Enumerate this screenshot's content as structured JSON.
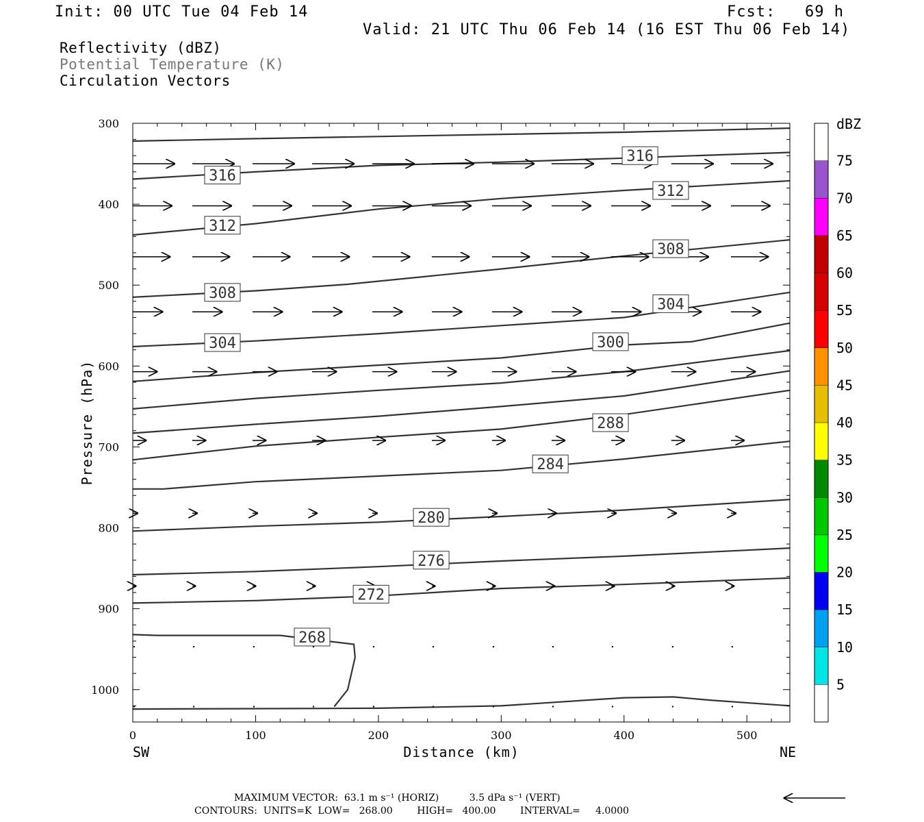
{
  "header": {
    "init": "Init: 00 UTC Tue 04 Feb 14",
    "fcst": "Fcst:   69 h",
    "valid": "Valid: 21 UTC Thu 06 Feb 14 (16 EST Thu 06 Feb 14)"
  },
  "fields": {
    "reflectivity": "Reflectivity (dBZ)",
    "theta": "Potential Temperature (K)",
    "vectors": "Circulation Vectors"
  },
  "chart_data": {
    "type": "cross-section",
    "xlabel": "Distance (km)",
    "ylabel": "Pressure (hPa)",
    "xlim": [
      0,
      535
    ],
    "ylim": [
      1040,
      300
    ],
    "x_ticks": [
      0,
      100,
      200,
      300,
      400,
      500
    ],
    "y_ticks": [
      300,
      400,
      500,
      600,
      700,
      800,
      900,
      1000
    ],
    "left_label": "SW",
    "right_label": "NE",
    "contours": [
      {
        "level": 320,
        "points": [
          [
            0,
            322
          ],
          [
            100,
            319
          ],
          [
            250,
            315
          ],
          [
            400,
            311
          ],
          [
            535,
            306
          ]
        ]
      },
      {
        "level": 316,
        "label": "316",
        "label_at": [
          73,
          364
        ],
        "points": [
          [
            0,
            369
          ],
          [
            100,
            360
          ],
          [
            200,
            352
          ],
          [
            300,
            348
          ],
          [
            400,
            343
          ],
          [
            535,
            336
          ]
        ]
      },
      {
        "level": 316,
        "label": "316",
        "label_at": [
          413,
          340
        ],
        "points": []
      },
      {
        "level": 312,
        "label": "312",
        "label_at": [
          73,
          426
        ],
        "points": [
          [
            0,
            438
          ],
          [
            100,
            424
          ],
          [
            200,
            406
          ],
          [
            300,
            393
          ],
          [
            400,
            383
          ],
          [
            535,
            371
          ]
        ]
      },
      {
        "level": 312,
        "label": "312",
        "label_at": [
          438,
          383
        ],
        "points": []
      },
      {
        "level": 308,
        "label": "308",
        "label_at": [
          73,
          509
        ],
        "points": [
          [
            0,
            515
          ],
          [
            100,
            507
          ],
          [
            175,
            499
          ],
          [
            300,
            480
          ],
          [
            400,
            464
          ],
          [
            535,
            444
          ]
        ]
      },
      {
        "level": 308,
        "label": "308",
        "label_at": [
          438,
          455
        ],
        "points": []
      },
      {
        "level": 304,
        "label": "304",
        "label_at": [
          73,
          571
        ],
        "points": [
          [
            0,
            576
          ],
          [
            100,
            569
          ],
          [
            200,
            560
          ],
          [
            300,
            550
          ],
          [
            400,
            540
          ],
          [
            535,
            509
          ]
        ]
      },
      {
        "level": 304,
        "label": "304",
        "label_at": [
          438,
          523
        ],
        "points": []
      },
      {
        "level": 300,
        "label": "300",
        "label_at": [
          389,
          570
        ],
        "points": [
          [
            0,
            619
          ],
          [
            100,
            608
          ],
          [
            200,
            599
          ],
          [
            300,
            590
          ],
          [
            400,
            574
          ],
          [
            455,
            570
          ],
          [
            535,
            547
          ]
        ]
      },
      {
        "level": 296,
        "points": [
          [
            0,
            653
          ],
          [
            100,
            640
          ],
          [
            200,
            630
          ],
          [
            300,
            621
          ],
          [
            400,
            607
          ],
          [
            535,
            581
          ]
        ]
      },
      {
        "level": 292,
        "points": [
          [
            0,
            683
          ],
          [
            100,
            672
          ],
          [
            200,
            662
          ],
          [
            300,
            650
          ],
          [
            400,
            637
          ],
          [
            535,
            606
          ]
        ]
      },
      {
        "level": 288,
        "label": "288",
        "label_at": [
          389,
          670
        ],
        "points": [
          [
            0,
            716
          ],
          [
            100,
            699
          ],
          [
            200,
            688
          ],
          [
            300,
            678
          ],
          [
            400,
            660
          ],
          [
            535,
            630
          ]
        ]
      },
      {
        "level": 284,
        "label": "284",
        "label_at": [
          340,
          721
        ],
        "points": [
          [
            0,
            752
          ],
          [
            25,
            752
          ],
          [
            100,
            743
          ],
          [
            200,
            736
          ],
          [
            300,
            729
          ],
          [
            400,
            715
          ],
          [
            535,
            693
          ]
        ]
      },
      {
        "level": 280,
        "label": "280",
        "label_at": [
          243,
          787
        ],
        "points": [
          [
            0,
            804
          ],
          [
            100,
            798
          ],
          [
            200,
            793
          ],
          [
            300,
            786
          ],
          [
            400,
            778
          ],
          [
            535,
            765
          ]
        ]
      },
      {
        "level": 276,
        "label": "276",
        "label_at": [
          243,
          840
        ],
        "points": [
          [
            0,
            858
          ],
          [
            100,
            854
          ],
          [
            200,
            848
          ],
          [
            300,
            841
          ],
          [
            400,
            835
          ],
          [
            535,
            825
          ]
        ]
      },
      {
        "level": 272,
        "label": "272",
        "label_at": [
          194,
          882
        ],
        "points": [
          [
            0,
            893
          ],
          [
            100,
            890
          ],
          [
            200,
            884
          ],
          [
            300,
            875
          ],
          [
            400,
            870
          ],
          [
            535,
            862
          ]
        ]
      },
      {
        "level": 268,
        "label": "268",
        "label_at": [
          146,
          935
        ],
        "points": [
          [
            0,
            932
          ],
          [
            20,
            933
          ],
          [
            120,
            933
          ],
          [
            180,
            944
          ],
          [
            181,
            960
          ],
          [
            175,
            1000
          ],
          [
            164,
            1021
          ]
        ]
      },
      {
        "level": 268,
        "points": [
          [
            0,
            1024
          ],
          [
            200,
            1023
          ],
          [
            300,
            1020
          ],
          [
            400,
            1010
          ],
          [
            440,
            1009
          ],
          [
            470,
            1013
          ],
          [
            535,
            1020
          ]
        ]
      }
    ],
    "vector_rows": [
      {
        "p": 350,
        "u": 45
      },
      {
        "p": 402,
        "u": 42
      },
      {
        "p": 465,
        "u": 40
      },
      {
        "p": 533,
        "u": 32
      },
      {
        "p": 607,
        "u": 26
      },
      {
        "p": 692,
        "u": 14
      },
      {
        "p": 782,
        "u": 5
      },
      {
        "p": 872,
        "u": 3
      },
      {
        "p": 947,
        "u": 2
      },
      {
        "p": 1021,
        "u": 1
      }
    ],
    "vector_columns": [
      0,
      48.5,
      97.5,
      146,
      195,
      243.5,
      292.5,
      341,
      389.5,
      438.5,
      487
    ],
    "colorbar": {
      "title": "dBZ",
      "labels": [
        "5",
        "10",
        "15",
        "20",
        "25",
        "30",
        "35",
        "40",
        "45",
        "50",
        "55",
        "60",
        "65",
        "70",
        "75"
      ],
      "colors": [
        "#00e5e5",
        "#00a0f0",
        "#0000f0",
        "#00ff00",
        "#00c800",
        "#008800",
        "#ffff00",
        "#e6c000",
        "#ff9000",
        "#ff0000",
        "#d50000",
        "#c00000",
        "#ff00ff",
        "#9955cc",
        "#ffffff"
      ]
    }
  },
  "footer": {
    "max_vector": "MAXIMUM VECTOR:  63.1 m s⁻¹ (HORIZ)          3.5 dPa s⁻¹ (VERT)",
    "contours": "CONTOURS:  UNITS=K  LOW=   268.00        HIGH=   400.00        INTERVAL=     4.0000"
  }
}
